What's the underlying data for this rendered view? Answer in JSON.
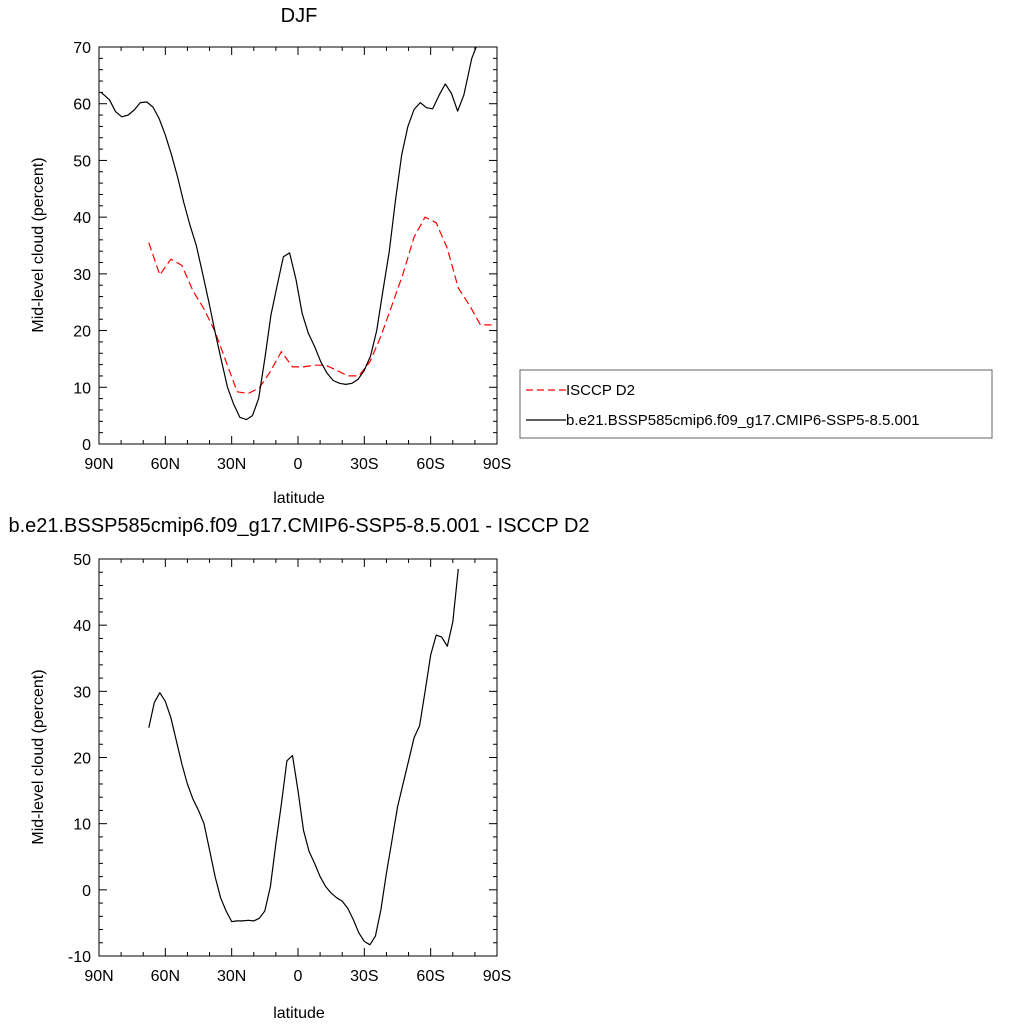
{
  "chart_data": [
    {
      "type": "line",
      "title": "DJF",
      "xlabel": "latitude",
      "ylabel": "Mid-level cloud (percent)",
      "xlim": [
        90,
        -90
      ],
      "ylim": [
        0,
        70
      ],
      "x_ticks": [
        90,
        60,
        30,
        0,
        -30,
        -60,
        -90
      ],
      "x_tick_labels": [
        "90N",
        "60N",
        "30N",
        "0",
        "30S",
        "60S",
        "90S"
      ],
      "y_ticks": [
        0,
        10,
        20,
        30,
        40,
        50,
        60,
        70
      ],
      "y_tick_labels": [
        "0",
        "10",
        "20",
        "30",
        "40",
        "50",
        "60",
        "70"
      ],
      "grid": false,
      "legend_position": "right",
      "series": [
        {
          "name": "ISCCP D2",
          "color": "#ff0000",
          "dash": "dashed",
          "points": [
            [
              67.5,
              35.5
            ],
            [
              62.5,
              29.8
            ],
            [
              57.5,
              32.6
            ],
            [
              52.5,
              31.5
            ],
            [
              47.5,
              27
            ],
            [
              42.5,
              23.8
            ],
            [
              37.5,
              19.8
            ],
            [
              32.5,
              14.5
            ],
            [
              27.5,
              9.2
            ],
            [
              22.5,
              8.9
            ],
            [
              17.5,
              9.9
            ],
            [
              12.5,
              12.8
            ],
            [
              7.5,
              16.3
            ],
            [
              2.5,
              13.6
            ],
            [
              -2.5,
              13.6
            ],
            [
              -7.5,
              13.9
            ],
            [
              -12.5,
              13.9
            ],
            [
              -17.5,
              13
            ],
            [
              -22.5,
              12
            ],
            [
              -27.5,
              12
            ],
            [
              -32.5,
              14.5
            ],
            [
              -37.5,
              19
            ],
            [
              -42.5,
              24.5
            ],
            [
              -47.5,
              30
            ],
            [
              -52.5,
              36.5
            ],
            [
              -57.5,
              40
            ],
            [
              -62.5,
              39
            ],
            [
              -67.5,
              34.5
            ],
            [
              -72.5,
              27.5
            ],
            [
              -77.5,
              24.5
            ],
            [
              -82.5,
              21
            ],
            [
              -87.5,
              21
            ]
          ]
        },
        {
          "name": "b.e21.BSSP585cmip6.f09_g17.CMIP6-SSP5-8.5.001",
          "color": "#000000",
          "dash": "solid",
          "points": [
            [
              89.06,
              62
            ],
            [
              85.3,
              60.7
            ],
            [
              82.5,
              58.6
            ],
            [
              79.7,
              57.7
            ],
            [
              76.9,
              58
            ],
            [
              74.1,
              58.9
            ],
            [
              71.3,
              60.2
            ],
            [
              68.4,
              60.3
            ],
            [
              65.6,
              59.4
            ],
            [
              62.8,
              57.4
            ],
            [
              60,
              54.5
            ],
            [
              57.2,
              51
            ],
            [
              54.4,
              47
            ],
            [
              51.6,
              42.5
            ],
            [
              48.8,
              38.5
            ],
            [
              46,
              35
            ],
            [
              43.1,
              30
            ],
            [
              40.3,
              25
            ],
            [
              37.5,
              19.7
            ],
            [
              34.7,
              14.8
            ],
            [
              31.9,
              10
            ],
            [
              29.1,
              7
            ],
            [
              26.3,
              4.7
            ],
            [
              23.4,
              4.3
            ],
            [
              20.6,
              5
            ],
            [
              17.8,
              8
            ],
            [
              15,
              15
            ],
            [
              12.2,
              22.8
            ],
            [
              9.4,
              28
            ],
            [
              6.6,
              33
            ],
            [
              3.8,
              33.7
            ],
            [
              0.9,
              29
            ],
            [
              -1.9,
              23
            ],
            [
              -4.7,
              19.5
            ],
            [
              -7.5,
              17.2
            ],
            [
              -10.3,
              14.5
            ],
            [
              -13.1,
              12.5
            ],
            [
              -15.9,
              11.2
            ],
            [
              -18.8,
              10.7
            ],
            [
              -21.6,
              10.5
            ],
            [
              -24.4,
              10.7
            ],
            [
              -27.2,
              11.4
            ],
            [
              -30,
              13
            ],
            [
              -32.8,
              15.5
            ],
            [
              -35.6,
              20
            ],
            [
              -38.4,
              27
            ],
            [
              -41.3,
              34
            ],
            [
              -44.1,
              43
            ],
            [
              -46.9,
              51
            ],
            [
              -49.7,
              56
            ],
            [
              -52.5,
              59
            ],
            [
              -55.3,
              60.2
            ],
            [
              -58.1,
              59.3
            ],
            [
              -60.9,
              59.1
            ],
            [
              -63.8,
              61.5
            ],
            [
              -66.6,
              63.5
            ],
            [
              -69.4,
              61.8
            ],
            [
              -72.2,
              58.7
            ],
            [
              -75,
              61.5
            ],
            [
              -78.6,
              68
            ],
            [
              -80.6,
              70
            ]
          ]
        }
      ]
    },
    {
      "type": "line",
      "title": "b.e21.BSSP585cmip6.f09_g17.CMIP6-SSP5-8.5.001 - ISCCP D2",
      "xlabel": "latitude",
      "ylabel": "Mid-level cloud (percent)",
      "xlim": [
        90,
        -90
      ],
      "ylim": [
        -10,
        50
      ],
      "x_ticks": [
        90,
        60,
        30,
        0,
        -30,
        -60,
        -90
      ],
      "x_tick_labels": [
        "90N",
        "60N",
        "30N",
        "0",
        "30S",
        "60S",
        "90S"
      ],
      "y_ticks": [
        -10,
        0,
        10,
        20,
        30,
        40,
        50
      ],
      "y_tick_labels": [
        "-10",
        "0",
        "10",
        "20",
        "30",
        "40",
        "50"
      ],
      "grid": false,
      "series": [
        {
          "color": "#000000",
          "dash": "solid",
          "points": [
            [
              67.5,
              24.5
            ],
            [
              65,
              28.3
            ],
            [
              62.5,
              29.8
            ],
            [
              60,
              28.5
            ],
            [
              57.5,
              26
            ],
            [
              55,
              22.5
            ],
            [
              52.5,
              19
            ],
            [
              50,
              16
            ],
            [
              47.5,
              13.7
            ],
            [
              45,
              12
            ],
            [
              42.5,
              10
            ],
            [
              40,
              6
            ],
            [
              37.5,
              2
            ],
            [
              35,
              -1.2
            ],
            [
              32.5,
              -3.2
            ],
            [
              30,
              -4.8
            ],
            [
              27.5,
              -4.7
            ],
            [
              25,
              -4.7
            ],
            [
              22.5,
              -4.6
            ],
            [
              20,
              -4.7
            ],
            [
              17.5,
              -4.3
            ],
            [
              15,
              -3.2
            ],
            [
              12.5,
              0.5
            ],
            [
              10,
              7
            ],
            [
              7.5,
              13
            ],
            [
              5,
              19.5
            ],
            [
              2.5,
              20.3
            ],
            [
              0,
              15
            ],
            [
              -2.5,
              9
            ],
            [
              -5,
              5.8
            ],
            [
              -7.5,
              4
            ],
            [
              -10,
              2
            ],
            [
              -12.5,
              0.5
            ],
            [
              -15,
              -0.5
            ],
            [
              -17.5,
              -1.2
            ],
            [
              -20,
              -1.7
            ],
            [
              -22.5,
              -2.8
            ],
            [
              -25,
              -4.5
            ],
            [
              -27.5,
              -6.5
            ],
            [
              -30,
              -7.8
            ],
            [
              -32.5,
              -8.3
            ],
            [
              -35,
              -7
            ],
            [
              -37.5,
              -3
            ],
            [
              -40,
              2.5
            ],
            [
              -42.5,
              7.5
            ],
            [
              -45,
              12.5
            ],
            [
              -47.5,
              16
            ],
            [
              -50,
              19.5
            ],
            [
              -52.5,
              23
            ],
            [
              -55,
              24.8
            ],
            [
              -57.5,
              30
            ],
            [
              -60,
              35.5
            ],
            [
              -62.5,
              38.5
            ],
            [
              -65,
              38.2
            ],
            [
              -67.5,
              36.8
            ],
            [
              -70,
              40.5
            ],
            [
              -72.5,
              48.5
            ]
          ]
        }
      ]
    }
  ]
}
